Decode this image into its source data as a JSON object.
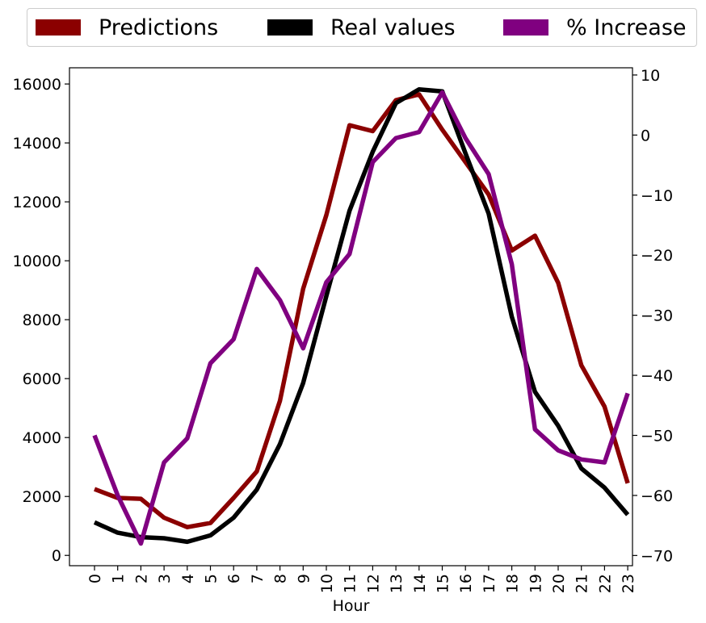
{
  "chart_data": {
    "type": "line",
    "xlabel": "Hour",
    "categories": [
      "0",
      "1",
      "2",
      "3",
      "4",
      "5",
      "6",
      "7",
      "8",
      "9",
      "10",
      "11",
      "12",
      "13",
      "14",
      "15",
      "16",
      "17",
      "18",
      "19",
      "20",
      "21",
      "22",
      "23"
    ],
    "left_axis": {
      "ylim": [
        -350,
        16550
      ],
      "ticks": [
        0,
        2000,
        4000,
        6000,
        8000,
        10000,
        12000,
        14000,
        16000
      ]
    },
    "right_axis": {
      "ylim": [
        -71.7,
        11.2
      ],
      "ticks": [
        10,
        0,
        -10,
        -20,
        -30,
        -40,
        -50,
        -60,
        -70
      ]
    },
    "series": [
      {
        "name": "Predictions",
        "color": "#8b0000",
        "axis": "left",
        "values": [
          2250,
          1950,
          1920,
          1280,
          960,
          1100,
          1950,
          2850,
          5250,
          9050,
          11550,
          14600,
          14400,
          15450,
          15650,
          14450,
          13350,
          12250,
          10350,
          10850,
          9250,
          6450,
          5050,
          2450
        ]
      },
      {
        "name": "Real values",
        "color": "#000000",
        "axis": "left",
        "values": [
          1120,
          770,
          620,
          580,
          460,
          680,
          1280,
          2230,
          3780,
          5850,
          8800,
          11700,
          13700,
          15350,
          15820,
          15750,
          13650,
          11600,
          8100,
          5550,
          4400,
          2950,
          2300,
          1380
        ]
      },
      {
        "name": "% Increase",
        "color": "#800080",
        "axis": "right",
        "values": [
          -50,
          -60,
          -68,
          -54.5,
          -50.5,
          -38,
          -34,
          -22.3,
          -27.5,
          -35.5,
          -24.5,
          -19.8,
          -4.5,
          -0.5,
          0.5,
          7.1,
          -0.5,
          -6.5,
          -21.5,
          -49,
          -52.5,
          -54,
          -54.5,
          -43
        ]
      }
    ],
    "legend": {
      "placement": "top-center, outside plot",
      "entries": [
        "Predictions",
        "Real values",
        "% Increase"
      ]
    },
    "grid": false
  }
}
